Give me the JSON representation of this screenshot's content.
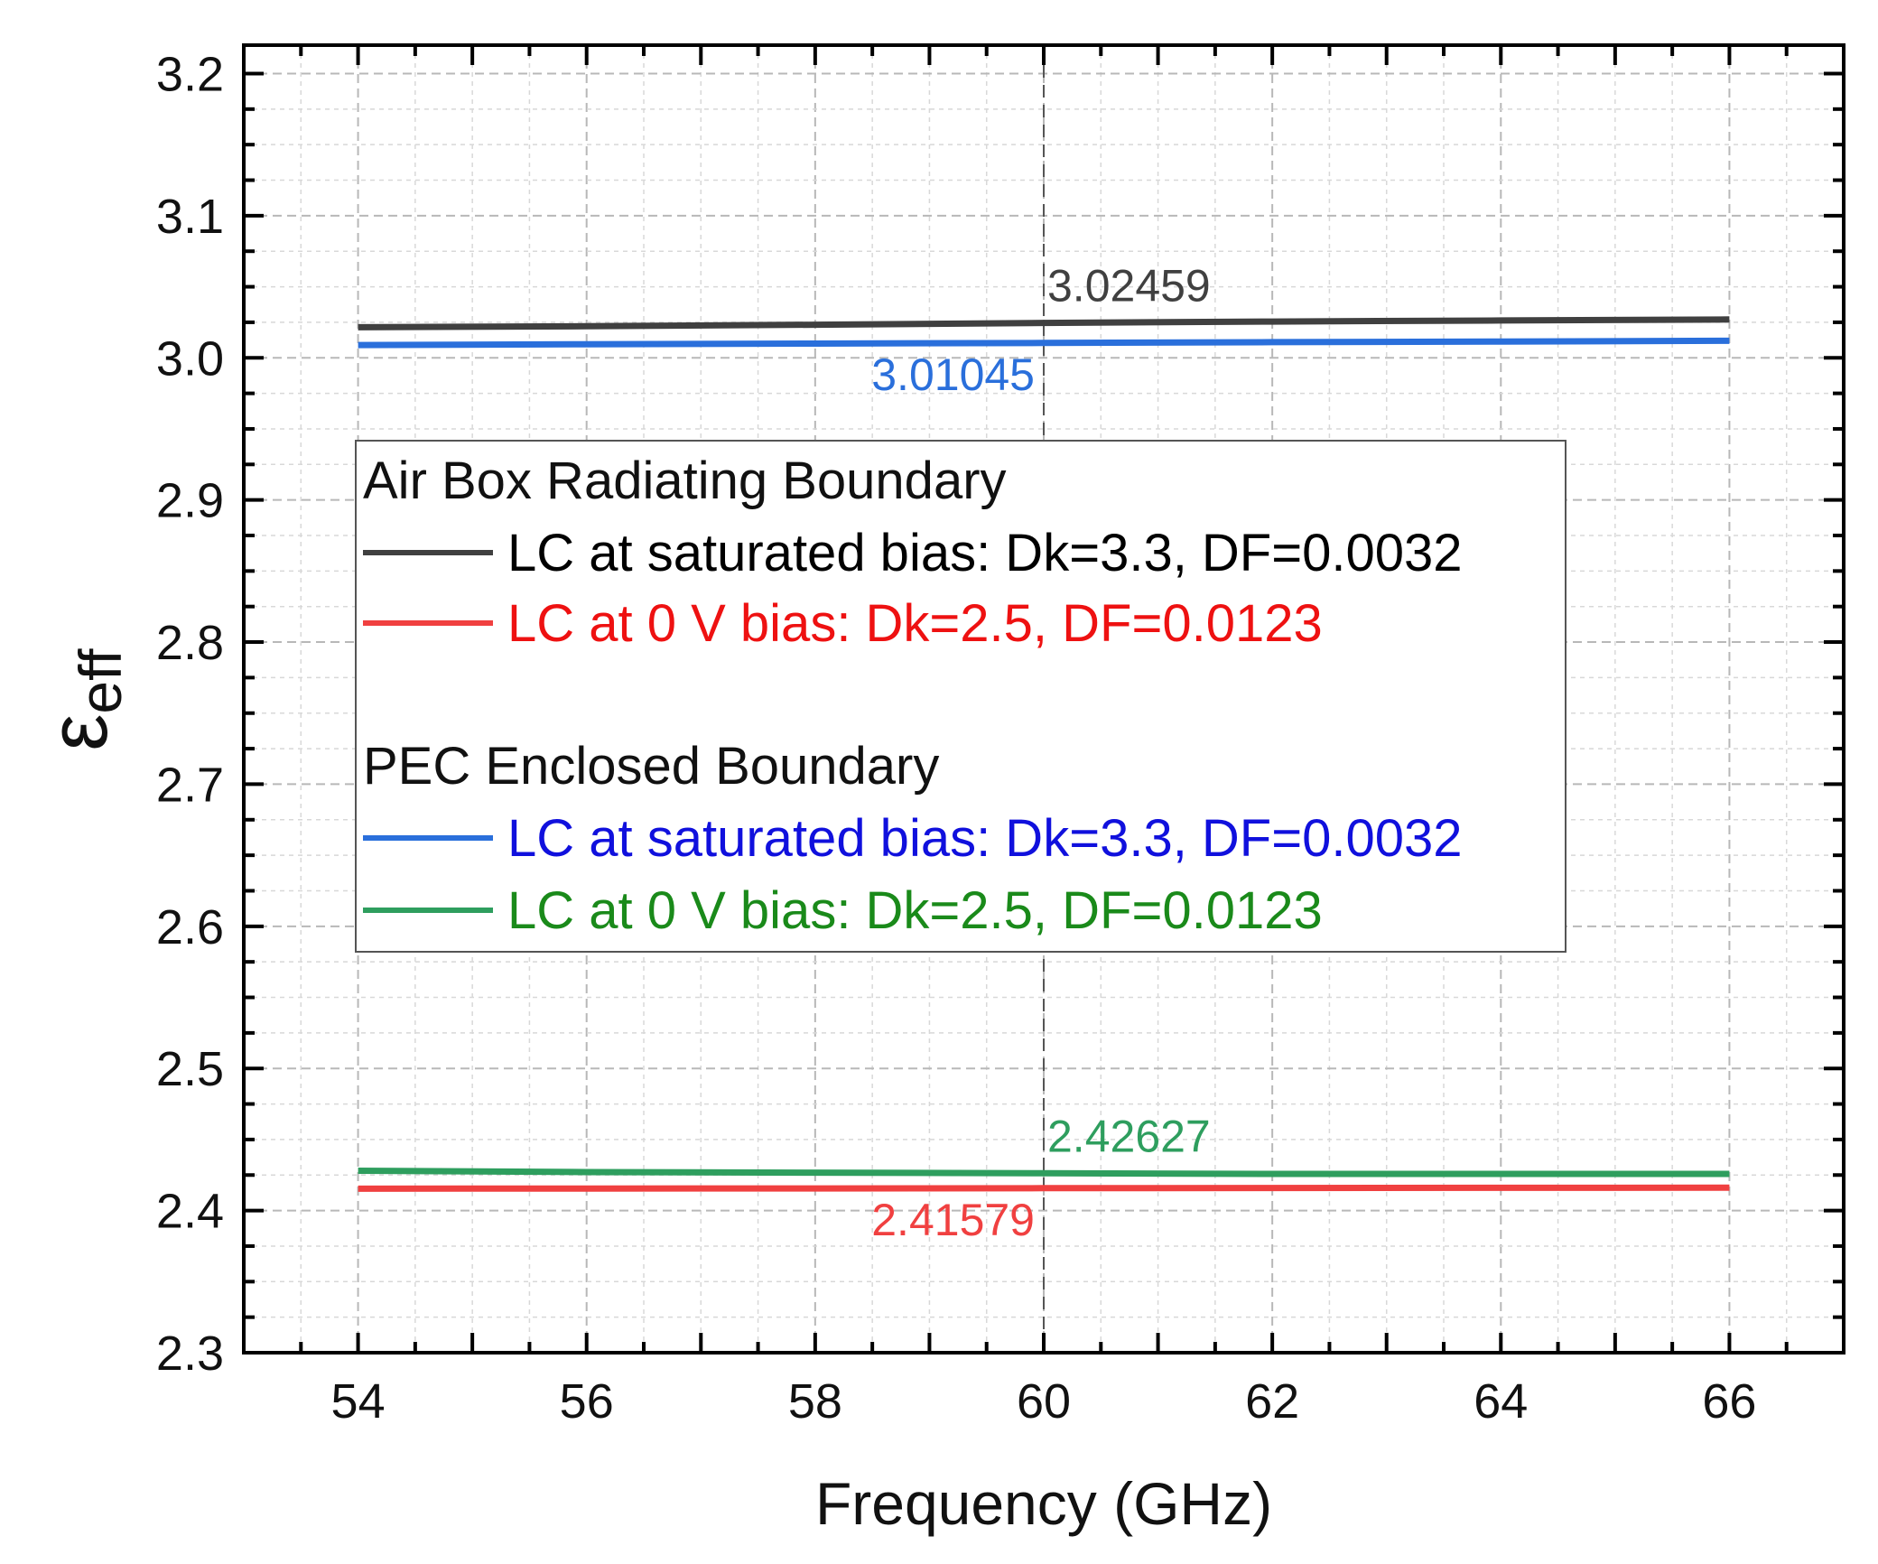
{
  "chart_data": {
    "type": "line",
    "xlabel": "Frequency (GHz)",
    "ylabel": {
      "base": "ε",
      "subscript": "eff"
    },
    "xlim": [
      53,
      67
    ],
    "ylim": [
      2.3,
      3.22
    ],
    "xticks": [
      54,
      56,
      58,
      60,
      62,
      64,
      66
    ],
    "xtick_labels": [
      "54",
      "56",
      "58",
      "60",
      "62",
      "64",
      "66"
    ],
    "yticks": [
      2.3,
      2.4,
      2.5,
      2.6,
      2.7,
      2.8,
      2.9,
      3.0,
      3.1,
      3.2
    ],
    "ytick_labels": [
      "2.3",
      "2.4",
      "2.5",
      "2.6",
      "2.7",
      "2.8",
      "2.9",
      "3.0",
      "3.1",
      "3.2"
    ],
    "grid": true,
    "reference_line_x": 60,
    "series": [
      {
        "id": "air-sat",
        "name": "LC at saturated bias: Dk=3.3, DF=0.0032",
        "group": "Air Box Radiating Boundary",
        "color": "#404040",
        "legend_text_color": "#000000",
        "x": [
          54,
          56,
          58,
          60,
          62,
          64,
          66
        ],
        "y": [
          3.0215,
          3.0222,
          3.0233,
          3.02459,
          3.0255,
          3.0263,
          3.027
        ]
      },
      {
        "id": "air-0v",
        "name": "LC at 0 V bias: Dk=2.5, DF=0.0123",
        "group": "Air Box Radiating Boundary",
        "color": "#f04040",
        "legend_text_color": "#ee1111",
        "x": [
          54,
          56,
          58,
          60,
          62,
          64,
          66
        ],
        "y": [
          2.4154,
          2.4155,
          2.4156,
          2.41579,
          2.4159,
          2.416,
          2.4161
        ]
      },
      {
        "id": "pec-sat",
        "name": "LC at saturated bias: Dk=3.3, DF=0.0032",
        "group": "PEC Enclosed Boundary",
        "color": "#2a6fdb",
        "legend_text_color": "#1010dd",
        "x": [
          54,
          56,
          58,
          60,
          62,
          64,
          66
        ],
        "y": [
          3.009,
          3.0096,
          3.01,
          3.01045,
          3.011,
          3.0115,
          3.012
        ]
      },
      {
        "id": "pec-0v",
        "name": "LC at 0 V bias: Dk=2.5, DF=0.0123",
        "group": "PEC Enclosed Boundary",
        "color": "#2e9e5e",
        "legend_text_color": "#1a8a1a",
        "x": [
          54,
          56,
          58,
          60,
          62,
          64,
          66
        ],
        "y": [
          2.428,
          2.4271,
          2.4267,
          2.42627,
          2.4258,
          2.4258,
          2.4258
        ]
      }
    ],
    "legend": {
      "position": "center-left",
      "groups": [
        {
          "title": "Air Box Radiating Boundary",
          "series": [
            "air-sat",
            "air-0v"
          ]
        },
        {
          "title": "PEC Enclosed Boundary",
          "series": [
            "pec-sat",
            "pec-0v"
          ]
        }
      ]
    },
    "annotations": [
      {
        "text": "3.02459",
        "x": 60,
        "y": 3.02459,
        "color": "#404040",
        "placement": "above-right"
      },
      {
        "text": "3.01045",
        "x": 60,
        "y": 3.01045,
        "color": "#2a6fdb",
        "placement": "below-left"
      },
      {
        "text": "2.42627",
        "x": 60,
        "y": 2.42627,
        "color": "#2e9e5e",
        "placement": "above-right"
      },
      {
        "text": "2.41579",
        "x": 60,
        "y": 2.41579,
        "color": "#f04040",
        "placement": "below-left"
      }
    ]
  }
}
